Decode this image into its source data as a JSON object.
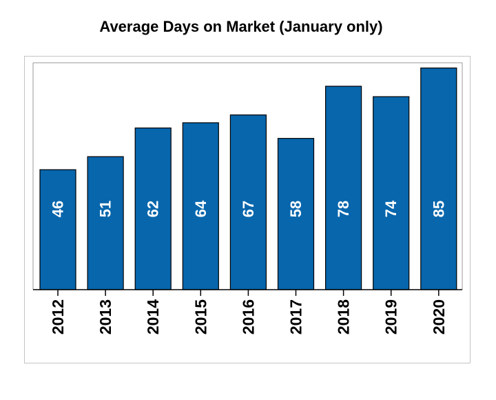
{
  "chart_data": {
    "type": "bar",
    "title": "Average Days on Market (January only)",
    "categories": [
      "2012",
      "2013",
      "2014",
      "2015",
      "2016",
      "2017",
      "2018",
      "2019",
      "2020"
    ],
    "values": [
      46,
      51,
      62,
      64,
      67,
      58,
      78,
      74,
      85
    ],
    "data_labels": [
      "46",
      "51",
      "62",
      "64",
      "67",
      "58",
      "78",
      "74",
      "85"
    ],
    "xlabel": "",
    "ylabel": "",
    "ylim": [
      0,
      87
    ],
    "grid": false,
    "legend": "none",
    "bar_color": "#0766ac",
    "label_color": "#ffffff",
    "frame_color": "#c4c4c4"
  }
}
